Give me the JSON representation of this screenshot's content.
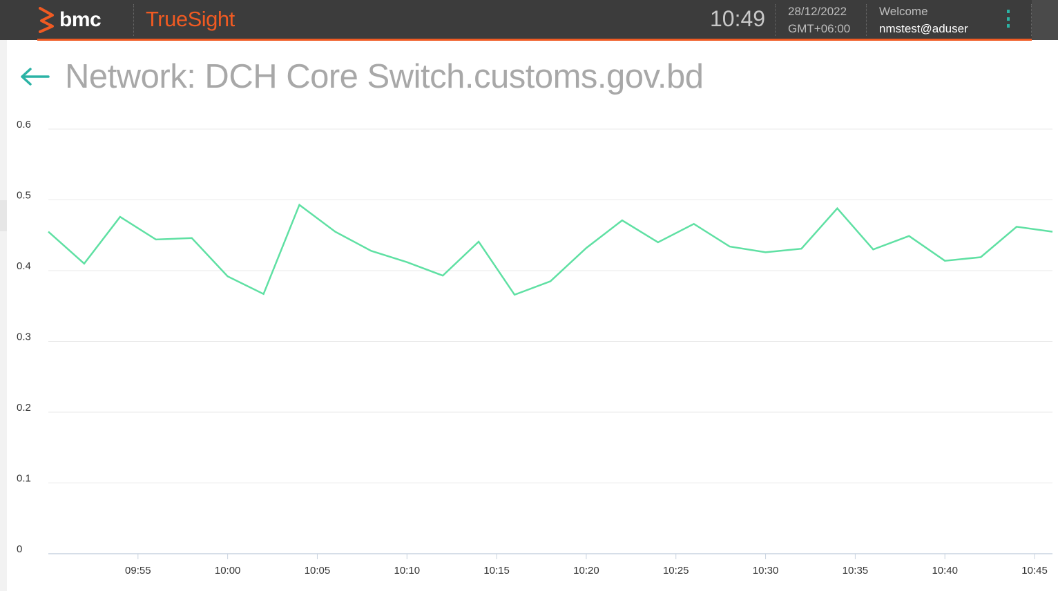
{
  "header": {
    "brand": "bmc",
    "product": "TrueSight",
    "time": "10:49",
    "date": "28/12/2022",
    "timezone": "GMT+06:00",
    "welcome_label": "Welcome",
    "username": "nmstest@aduser",
    "menu_icon": "kebab-menu-icon",
    "accent_color": "#f05a22",
    "bar_color": "#3c3c3c"
  },
  "page": {
    "back_icon": "arrow-left-icon",
    "title": "Network: DCH Core Switch.customs.gov.bd"
  },
  "chart_data": {
    "type": "line",
    "title": "",
    "xlabel": "",
    "ylabel": "",
    "ylim": [
      0,
      0.6
    ],
    "yticks": [
      "0",
      "0.1",
      "0.2",
      "0.3",
      "0.4",
      "0.5",
      "0.6"
    ],
    "xlim": [
      "09:50",
      "10:46"
    ],
    "xticks": [
      "09:55",
      "10:00",
      "10:05",
      "10:10",
      "10:15",
      "10:20",
      "10:25",
      "10:30",
      "10:35",
      "10:40",
      "10:45"
    ],
    "grid": true,
    "line_color": "#5fe0a3",
    "series": [
      {
        "x": [
          "09:50",
          "09:52",
          "09:54",
          "09:56",
          "09:58",
          "10:00",
          "10:02",
          "10:04",
          "10:06",
          "10:08",
          "10:10",
          "10:12",
          "10:14",
          "10:16",
          "10:18",
          "10:20",
          "10:22",
          "10:24",
          "10:26",
          "10:28",
          "10:30",
          "10:32",
          "10:34",
          "10:36",
          "10:38",
          "10:40",
          "10:42",
          "10:44",
          "10:46"
        ],
        "values": [
          0.455,
          0.41,
          0.476,
          0.444,
          0.446,
          0.392,
          0.367,
          0.493,
          0.455,
          0.428,
          0.412,
          0.393,
          0.441,
          0.366,
          0.385,
          0.432,
          0.471,
          0.44,
          0.466,
          0.434,
          0.426,
          0.431,
          0.488,
          0.43,
          0.449,
          0.414,
          0.419,
          0.462,
          0.455
        ]
      }
    ]
  }
}
